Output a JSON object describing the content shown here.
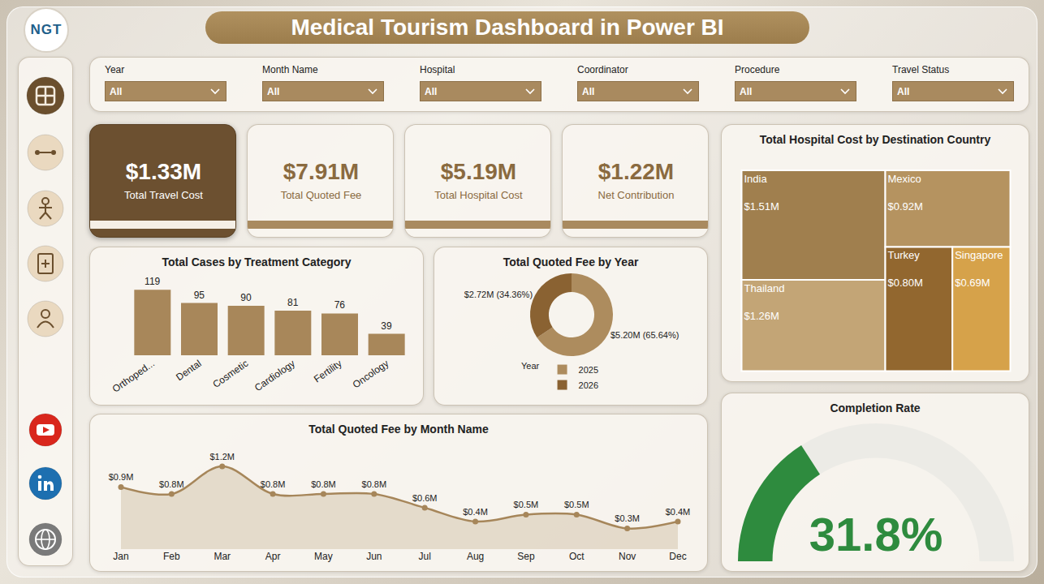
{
  "header": {
    "logo": "NGT",
    "title": "Medical Tourism Dashboard in Power BI"
  },
  "filters": [
    {
      "label": "Year",
      "value": "All"
    },
    {
      "label": "Month Name",
      "value": "All"
    },
    {
      "label": "Hospital",
      "value": "All"
    },
    {
      "label": "Coordinator",
      "value": "All"
    },
    {
      "label": "Procedure",
      "value": "All"
    },
    {
      "label": "Travel Status",
      "value": "All"
    }
  ],
  "kpis": [
    {
      "value": "$1.33M",
      "label": "Total Travel Cost"
    },
    {
      "value": "$7.91M",
      "label": "Total Quoted Fee"
    },
    {
      "value": "$5.19M",
      "label": "Total Hospital Cost"
    },
    {
      "value": "$1.22M",
      "label": "Net Contribution"
    }
  ],
  "chart_data": [
    {
      "type": "bar",
      "title": "Total Cases by Treatment Category",
      "categories": [
        "Orthoped...",
        "Dental",
        "Cosmetic",
        "Cardiology",
        "Fertility",
        "Oncology"
      ],
      "values": [
        119,
        95,
        90,
        81,
        76,
        39
      ],
      "color": "#a8875a",
      "data_labels": true,
      "tick_labels": "x",
      "grid": false
    },
    {
      "type": "donut",
      "title": "Total Quoted Fee by Year",
      "categories": [
        "2025",
        "2026"
      ],
      "values": [
        5.2,
        2.72
      ],
      "value_labels": [
        "$5.20M (65.64%)",
        "$2.72M (34.36%)"
      ],
      "colors": [
        "#ad8c5e",
        "#8a6232"
      ],
      "data_labels": true,
      "legend": "bottom",
      "legend_title": "Year"
    },
    {
      "type": "treemap",
      "title": "Total Hospital Cost by Destination Country",
      "categories": [
        "India",
        "Thailand",
        "Mexico",
        "Turkey",
        "Singapore"
      ],
      "values": [
        1.51,
        1.26,
        0.92,
        0.8,
        0.69
      ],
      "value_labels": [
        "$1.51M",
        "$1.26M",
        "$0.92M",
        "$0.80M",
        "$0.69M"
      ],
      "colors": [
        "#a07f4e",
        "#c3a576",
        "#b59360",
        "#92672f",
        "#d6a24a"
      ],
      "data_labels": true
    },
    {
      "type": "area",
      "title": "Total Quoted Fee by Month Name",
      "categories": [
        "Jan",
        "Feb",
        "Mar",
        "Apr",
        "May",
        "Jun",
        "Jul",
        "Aug",
        "Sep",
        "Oct",
        "Nov",
        "Dec"
      ],
      "values": [
        0.9,
        0.8,
        1.2,
        0.8,
        0.8,
        0.8,
        0.6,
        0.4,
        0.5,
        0.5,
        0.3,
        0.4
      ],
      "value_labels": [
        "$0.9M",
        "$0.8M",
        "$1.2M",
        "$0.8M",
        "$0.8M",
        "$0.8M",
        "$0.6M",
        "$0.4M",
        "$0.5M",
        "$0.5M",
        "$0.3M",
        "$0.4M"
      ],
      "color": "#a6865a",
      "data_labels": true,
      "tick_labels": "x",
      "grid": false
    },
    {
      "type": "gauge",
      "title": "Completion Rate",
      "values": [
        31.8
      ],
      "value_labels": [
        "31.8%"
      ],
      "ylim": [
        0,
        100
      ],
      "color": "#2e8b3e",
      "tick_labels": false
    }
  ]
}
